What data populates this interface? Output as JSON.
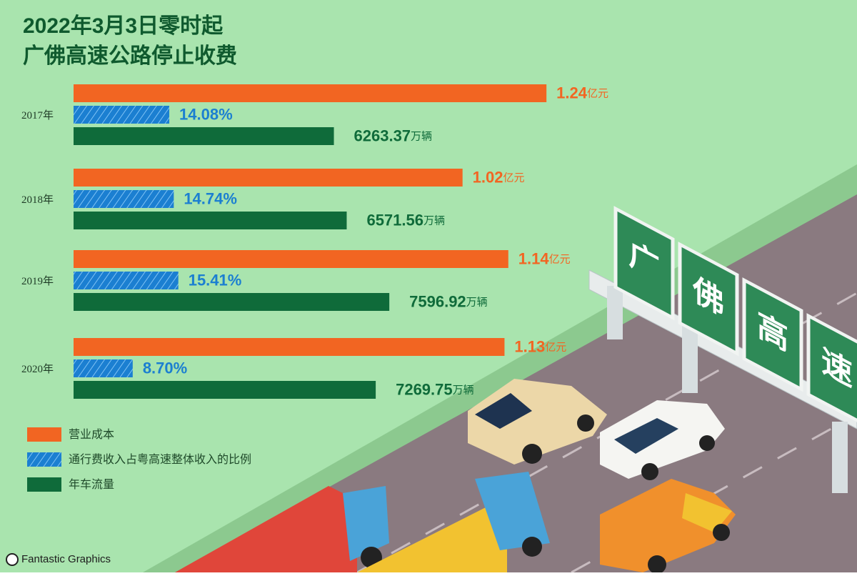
{
  "chart_data": {
    "type": "bar",
    "title": [
      "2022年3月3日零时起",
      "广佛高速公路停止收费"
    ],
    "categories": [
      "2017年",
      "2018年",
      "2019年",
      "2020年"
    ],
    "series": [
      {
        "name": "营业成本",
        "color": "#f26522",
        "unit": "亿元",
        "values": [
          1.24,
          1.02,
          1.14,
          1.13
        ]
      },
      {
        "name": "通行费收入占粤高速整体收入的比例",
        "color": "#1b7fd1",
        "unit": "%",
        "hatched": true,
        "values": [
          14.08,
          14.74,
          15.41,
          8.7
        ],
        "value_labels": [
          "14.08",
          "14.74",
          "15.41",
          "8.70"
        ]
      },
      {
        "name": "年车流量",
        "color": "#0f6b3a",
        "unit": "万辆",
        "values": [
          6263.37,
          6571.56,
          7596.92,
          7269.75
        ]
      }
    ]
  },
  "illustration": {
    "sign": [
      "广",
      "佛",
      "高",
      "速"
    ]
  },
  "credit": "Fantastic Graphics"
}
